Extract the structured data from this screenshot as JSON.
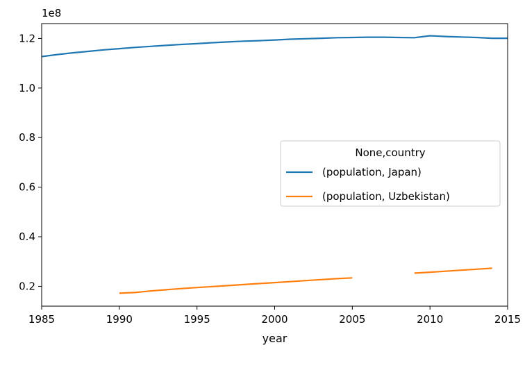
{
  "chart_data": {
    "type": "line",
    "title": "",
    "xlabel": "year",
    "ylabel": "",
    "y_offset_text": "1e8",
    "xlim": [
      1985,
      2015
    ],
    "ylim": [
      0.12,
      1.26
    ],
    "x_ticks": [
      1985,
      1990,
      1995,
      2000,
      2005,
      2010,
      2015
    ],
    "y_ticks": [
      0.2,
      0.4,
      0.6,
      0.8,
      1.0,
      1.2
    ],
    "y_tick_labels": [
      "0.2",
      "0.4",
      "0.6",
      "0.8",
      "1.0",
      "1.2"
    ],
    "grid": false,
    "legend": {
      "title": "None,country",
      "placement": "center-right"
    },
    "series": [
      {
        "name": "(population, Japan)",
        "color": "#1f77b4",
        "x": [
          1985,
          1986,
          1987,
          1988,
          1989,
          1990,
          1991,
          1992,
          1993,
          1994,
          1995,
          1996,
          1997,
          1998,
          1999,
          2000,
          2001,
          2002,
          2003,
          2004,
          2005,
          2006,
          2007,
          2008,
          2009,
          2010,
          2011,
          2012,
          2013,
          2014,
          2015
        ],
        "values": [
          1.127,
          1.135,
          1.142,
          1.148,
          1.154,
          1.159,
          1.164,
          1.168,
          1.172,
          1.176,
          1.179,
          1.183,
          1.186,
          1.189,
          1.191,
          1.194,
          1.197,
          1.199,
          1.201,
          1.203,
          1.204,
          1.205,
          1.205,
          1.204,
          1.203,
          1.211,
          1.208,
          1.206,
          1.204,
          1.201,
          1.201
        ]
      },
      {
        "name": "(population, Uzbekistan)",
        "color": "#ff7f0e",
        "x": [
          1990,
          1991,
          1992,
          1993,
          1994,
          1995,
          1996,
          1997,
          1998,
          1999,
          2000,
          2001,
          2002,
          2003,
          2004,
          2005,
          2006,
          2007,
          2008,
          2009,
          2010,
          2011,
          2012,
          2013,
          2014
        ],
        "values": [
          0.172,
          0.175,
          0.181,
          0.186,
          0.191,
          0.195,
          0.199,
          0.203,
          0.207,
          0.211,
          0.215,
          0.219,
          0.223,
          0.227,
          0.231,
          0.234,
          null,
          null,
          null,
          0.253,
          0.257,
          0.261,
          0.265,
          0.269,
          0.273
        ]
      }
    ]
  }
}
